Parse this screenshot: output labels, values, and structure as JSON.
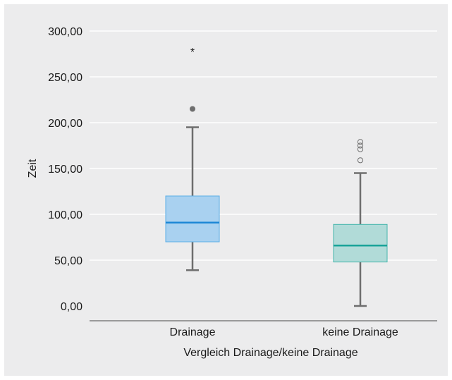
{
  "chart_data": {
    "type": "boxplot",
    "title": "",
    "xlabel": "Vergleich Drainage/keine Drainage",
    "ylabel": "Zeit",
    "ylim": [
      0,
      300
    ],
    "yticks": [
      0,
      50,
      100,
      150,
      200,
      250,
      300
    ],
    "ytick_labels": [
      "0,00",
      "50,00",
      "100,00",
      "150,00",
      "200,00",
      "250,00",
      "300,00"
    ],
    "grid": true,
    "categories": [
      "Drainage",
      "keine Drainage"
    ],
    "boxes": [
      {
        "category": "Drainage",
        "min": 39,
        "q1": 70,
        "median": 91,
        "q3": 120,
        "max": 195,
        "outliers": [
          215
        ],
        "extremes": [
          280
        ],
        "fill": "#a9d1f0",
        "stroke": "#5aaee6",
        "median_color": "#1c87d6"
      },
      {
        "category": "keine Drainage",
        "min": 0,
        "q1": 48,
        "median": 66,
        "q3": 89,
        "max": 145,
        "outliers": [
          159,
          171,
          175,
          179
        ],
        "extremes": [],
        "fill": "#b1dbd8",
        "stroke": "#45b5ac",
        "median_color": "#17a398"
      }
    ],
    "colors": {
      "background": "#ececed",
      "grid": "#ffffff",
      "axis": "#9a9a9a",
      "whisker": "#6e6e6e",
      "outlier_filled": "#6e6e6e"
    }
  }
}
